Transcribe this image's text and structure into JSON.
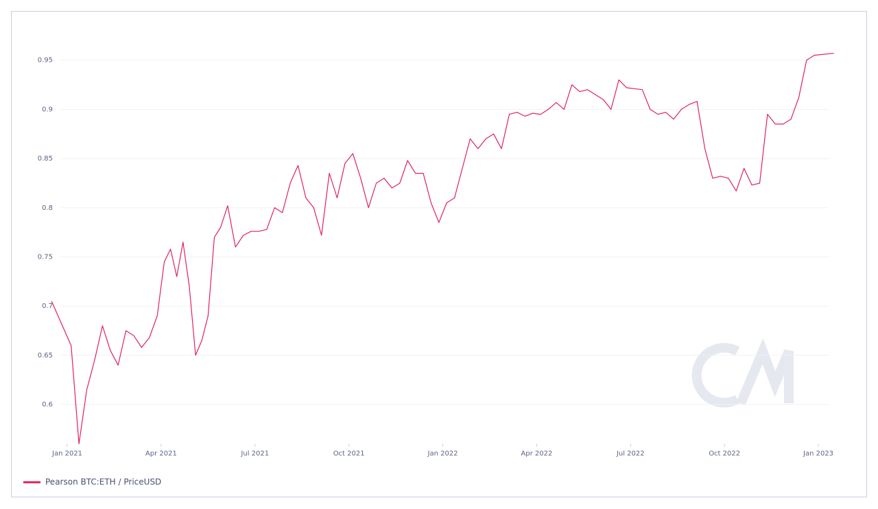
{
  "chart_data": {
    "type": "line",
    "x": [
      "2020-12",
      "2021-01",
      "2021-01",
      "2021-01",
      "2021-01",
      "2021-02",
      "2021-02",
      "2021-02",
      "2021-02",
      "2021-03",
      "2021-03",
      "2021-03",
      "2021-03",
      "2021-04",
      "2021-04",
      "2021-04",
      "2021-04",
      "2021-04",
      "2021-05",
      "2021-05",
      "2021-05",
      "2021-05",
      "2021-05",
      "2021-06",
      "2021-06",
      "2021-06",
      "2021-06",
      "2021-07",
      "2021-07",
      "2021-07",
      "2021-07",
      "2021-08",
      "2021-08",
      "2021-08",
      "2021-08",
      "2021-09",
      "2021-09",
      "2021-09",
      "2021-09",
      "2021-10",
      "2021-10",
      "2021-10",
      "2021-10",
      "2021-11",
      "2021-11",
      "2021-11",
      "2021-11",
      "2021-12",
      "2021-12",
      "2021-12",
      "2021-12",
      "2022-01",
      "2022-01",
      "2022-01",
      "2022-01",
      "2022-02",
      "2022-02",
      "2022-02",
      "2022-02",
      "2022-03",
      "2022-03",
      "2022-03",
      "2022-03",
      "2022-04",
      "2022-04",
      "2022-04",
      "2022-04",
      "2022-05",
      "2022-05",
      "2022-05",
      "2022-05",
      "2022-06",
      "2022-06",
      "2022-06",
      "2022-06",
      "2022-07",
      "2022-07",
      "2022-07",
      "2022-07",
      "2022-08",
      "2022-08",
      "2022-08",
      "2022-08",
      "2022-09",
      "2022-09",
      "2022-09",
      "2022-09",
      "2022-10",
      "2022-10",
      "2022-10",
      "2022-10",
      "2022-11",
      "2022-11",
      "2022-11",
      "2022-11",
      "2022-12",
      "2022-12",
      "2022-12",
      "2022-12",
      "2023-01"
    ],
    "series": [
      {
        "name": "Pearson BTC:ETH / PriceUSD",
        "color": "#e0205f",
        "values": [
          0.705,
          0.66,
          0.56,
          0.615,
          0.645,
          0.68,
          0.655,
          0.64,
          0.675,
          0.67,
          0.658,
          0.668,
          0.69,
          0.745,
          0.758,
          0.73,
          0.765,
          0.72,
          0.65,
          0.665,
          0.69,
          0.77,
          0.78,
          0.802,
          0.76,
          0.772,
          0.776,
          0.776,
          0.778,
          0.8,
          0.795,
          0.825,
          0.843,
          0.81,
          0.8,
          0.772,
          0.835,
          0.81,
          0.845,
          0.855,
          0.83,
          0.8,
          0.825,
          0.83,
          0.82,
          0.825,
          0.848,
          0.835,
          0.835,
          0.805,
          0.785,
          0.805,
          0.81,
          0.84,
          0.87,
          0.86,
          0.87,
          0.875,
          0.86,
          0.895,
          0.897,
          0.893,
          0.896,
          0.895,
          0.9,
          0.907,
          0.9,
          0.925,
          0.918,
          0.92,
          0.915,
          0.91,
          0.9,
          0.93,
          0.922,
          0.921,
          0.92,
          0.9,
          0.895,
          0.897,
          0.89,
          0.9,
          0.905,
          0.908,
          0.86,
          0.83,
          0.832,
          0.83,
          0.817,
          0.84,
          0.823,
          0.825,
          0.895,
          0.885,
          0.885,
          0.89,
          0.912,
          0.95,
          0.955,
          0.957
        ]
      }
    ],
    "ylim": [
      0.56,
      1.0
    ],
    "yticks": [
      0.6,
      0.65,
      0.7,
      0.75,
      0.8,
      0.85,
      0.9,
      0.95
    ],
    "xticks": [
      {
        "value": "2021-01",
        "label": "Jan 2021"
      },
      {
        "value": "2021-04",
        "label": "Apr 2021"
      },
      {
        "value": "2021-07",
        "label": "Jul 2021"
      },
      {
        "value": "2021-10",
        "label": "Oct 2021"
      },
      {
        "value": "2022-01",
        "label": "Jan 2022"
      },
      {
        "value": "2022-04",
        "label": "Apr 2022"
      },
      {
        "value": "2022-07",
        "label": "Jul 2022"
      },
      {
        "value": "2022-10",
        "label": "Oct 2022"
      },
      {
        "value": "2023-01",
        "label": "Jan 2023"
      }
    ],
    "grid": true,
    "legend": "bottom-left"
  }
}
